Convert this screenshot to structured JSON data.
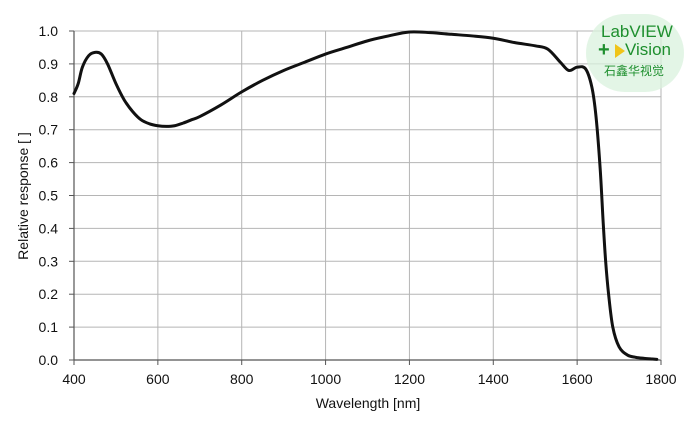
{
  "chart_data": {
    "type": "line",
    "title": "",
    "xlabel": "Wavelength [nm]",
    "ylabel": "Relative response [ ]",
    "xlim": [
      400,
      1800
    ],
    "ylim": [
      0.0,
      1.0
    ],
    "x_ticks": [
      "400",
      "600",
      "800",
      "1000",
      "1200",
      "1400",
      "1600",
      "1800"
    ],
    "y_ticks": [
      "0.0",
      "0.1",
      "0.2",
      "0.3",
      "0.4",
      "0.5",
      "0.6",
      "0.7",
      "0.8",
      "0.9",
      "1.0"
    ],
    "grid": true,
    "legend": "none",
    "colors": {
      "line": "#111111",
      "grid": "#b5b5b5",
      "axis": "#555555"
    },
    "series": [
      {
        "x": [
          400,
          410,
          420,
          435,
          450,
          465,
          480,
          500,
          520,
          540,
          560,
          580,
          600,
          620,
          640,
          660,
          680,
          700,
          750,
          800,
          850,
          900,
          950,
          1000,
          1050,
          1100,
          1150,
          1200,
          1250,
          1300,
          1350,
          1400,
          1450,
          1500,
          1530,
          1560,
          1580,
          1600,
          1620,
          1635,
          1645,
          1655,
          1662,
          1668,
          1675,
          1685,
          1700,
          1720,
          1740,
          1760,
          1780,
          1790
        ],
        "y": [
          0.81,
          0.84,
          0.89,
          0.925,
          0.935,
          0.93,
          0.9,
          0.84,
          0.79,
          0.755,
          0.73,
          0.718,
          0.712,
          0.71,
          0.712,
          0.72,
          0.73,
          0.74,
          0.775,
          0.815,
          0.85,
          0.88,
          0.905,
          0.93,
          0.95,
          0.97,
          0.985,
          0.997,
          0.995,
          0.99,
          0.985,
          0.978,
          0.965,
          0.955,
          0.945,
          0.905,
          0.88,
          0.89,
          0.885,
          0.83,
          0.74,
          0.58,
          0.42,
          0.3,
          0.2,
          0.1,
          0.04,
          0.015,
          0.008,
          0.005,
          0.003,
          0.002
        ]
      }
    ]
  },
  "watermark": {
    "line1": "LabVIEW",
    "plus": "+",
    "line2": "Vision",
    "line3": "石鑫华视觉"
  }
}
